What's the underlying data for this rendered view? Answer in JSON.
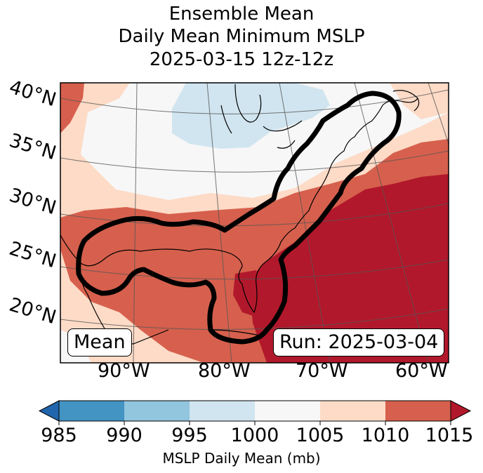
{
  "title": {
    "line1": "Ensemble Mean",
    "line2": "Daily Mean Minimum MSLP",
    "line3": "2025-03-15 12z-12z"
  },
  "map": {
    "lat_labels": [
      "40°N",
      "35°N",
      "30°N",
      "25°N",
      "20°N"
    ],
    "lon_labels": [
      "90°W",
      "80°W",
      "70°W",
      "60°W"
    ],
    "left_box": "Mean",
    "right_box": "Run: 2025-03-04",
    "colors": {
      "lt_blue": "#d1e5f0",
      "white": "#f7f7f7",
      "peach": "#fddbc7",
      "salmon": "#d6604d",
      "dark_red": "#b2182b"
    }
  },
  "colorbar": {
    "ticks": [
      "985",
      "990",
      "995",
      "1000",
      "1005",
      "1010",
      "1015"
    ],
    "colors": [
      "#4393c3",
      "#92c5de",
      "#d1e5f0",
      "#f7f7f7",
      "#fddbc7",
      "#d6604d"
    ],
    "under_color": "#2166ac",
    "over_color": "#b2182b",
    "label": "MSLP Daily Mean (mb)"
  }
}
